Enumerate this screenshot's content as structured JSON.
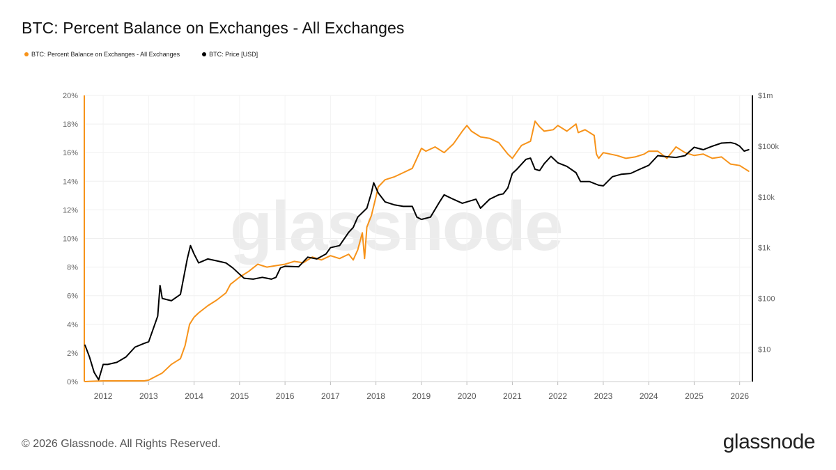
{
  "title": "BTC: Percent Balance on Exchanges - All Exchanges",
  "legend": [
    {
      "label": "BTC: Percent Balance on Exchanges - All Exchanges",
      "color": "#f7931a"
    },
    {
      "label": "BTC: Price [USD]",
      "color": "#000000"
    }
  ],
  "watermark": "glassnode",
  "footer": {
    "copyright": "© 2026 Glassnode. All Rights Reserved.",
    "logo": "glassnode"
  },
  "chart_data": {
    "type": "line",
    "title": "BTC: Percent Balance on Exchanges - All Exchanges",
    "grid": true,
    "x_ticks": [
      "2012",
      "2013",
      "2014",
      "2015",
      "2016",
      "2017",
      "2018",
      "2019",
      "2020",
      "2021",
      "2022",
      "2023",
      "2024",
      "2025",
      "2026"
    ],
    "xlim": [
      2011.6,
      2026.25
    ],
    "y_left": {
      "ticks": [
        "0%",
        "2%",
        "4%",
        "6%",
        "8%",
        "10%",
        "12%",
        "14%",
        "16%",
        "18%",
        "20%"
      ],
      "ylim": [
        0,
        20
      ],
      "unit": "%"
    },
    "y_right": {
      "ticks": [
        "$10",
        "$100",
        "$1k",
        "$10k",
        "$100k",
        "$1m"
      ],
      "scale": "log",
      "ylim": [
        2.3,
        1000000
      ]
    },
    "series": [
      {
        "name": "BTC: Percent Balance on Exchanges - All Exchanges",
        "color": "#f7931a",
        "axis": "left",
        "x": [
          2011.6,
          2012.0,
          2012.5,
          2012.9,
          2013.0,
          2013.3,
          2013.5,
          2013.7,
          2013.8,
          2013.9,
          2014.0,
          2014.1,
          2014.3,
          2014.5,
          2014.7,
          2014.8,
          2015.0,
          2015.2,
          2015.4,
          2015.6,
          2015.8,
          2016.0,
          2016.2,
          2016.4,
          2016.6,
          2016.8,
          2017.0,
          2017.2,
          2017.4,
          2017.5,
          2017.6,
          2017.7,
          2017.75,
          2017.8,
          2017.9,
          2018.0,
          2018.05,
          2018.2,
          2018.4,
          2018.6,
          2018.8,
          2018.9,
          2019.0,
          2019.1,
          2019.3,
          2019.5,
          2019.7,
          2019.9,
          2020.0,
          2020.1,
          2020.3,
          2020.5,
          2020.7,
          2020.9,
          2021.0,
          2021.2,
          2021.4,
          2021.5,
          2021.6,
          2021.7,
          2021.9,
          2022.0,
          2022.2,
          2022.4,
          2022.45,
          2022.6,
          2022.8,
          2022.85,
          2022.9,
          2023.0,
          2023.3,
          2023.5,
          2023.7,
          2023.9,
          2024.0,
          2024.2,
          2024.4,
          2024.6,
          2024.8,
          2025.0,
          2025.2,
          2025.4,
          2025.6,
          2025.8,
          2026.0,
          2026.1,
          2026.2
        ],
        "y": [
          0.0,
          0.05,
          0.05,
          0.05,
          0.1,
          0.6,
          1.2,
          1.6,
          2.5,
          4.0,
          4.5,
          4.8,
          5.3,
          5.7,
          6.2,
          6.8,
          7.3,
          7.7,
          8.2,
          8.0,
          8.1,
          8.2,
          8.4,
          8.3,
          8.7,
          8.5,
          8.8,
          8.6,
          8.9,
          8.5,
          9.2,
          10.4,
          8.6,
          10.8,
          11.6,
          12.9,
          13.6,
          14.1,
          14.3,
          14.6,
          14.9,
          15.6,
          16.3,
          16.1,
          16.4,
          16.0,
          16.6,
          17.5,
          17.9,
          17.5,
          17.1,
          17.0,
          16.7,
          15.9,
          15.6,
          16.5,
          16.8,
          18.2,
          17.8,
          17.5,
          17.6,
          17.9,
          17.5,
          18.0,
          17.4,
          17.6,
          17.2,
          15.9,
          15.6,
          16.0,
          15.8,
          15.6,
          15.7,
          15.9,
          16.1,
          16.1,
          15.6,
          16.4,
          16.0,
          15.8,
          15.9,
          15.6,
          15.7,
          15.2,
          15.1,
          14.9,
          14.7
        ]
      },
      {
        "name": "BTC: Price [USD]",
        "color": "#000000",
        "axis": "right",
        "x": [
          2011.6,
          2011.7,
          2011.8,
          2011.9,
          2012.0,
          2012.1,
          2012.3,
          2012.5,
          2012.7,
          2012.9,
          2013.0,
          2013.2,
          2013.25,
          2013.3,
          2013.5,
          2013.7,
          2013.85,
          2013.92,
          2014.0,
          2014.1,
          2014.3,
          2014.5,
          2014.7,
          2014.85,
          2015.0,
          2015.1,
          2015.3,
          2015.5,
          2015.7,
          2015.8,
          2015.9,
          2016.0,
          2016.3,
          2016.5,
          2016.7,
          2016.9,
          2017.0,
          2017.2,
          2017.4,
          2017.5,
          2017.6,
          2017.8,
          2017.9,
          2017.95,
          2018.05,
          2018.2,
          2018.4,
          2018.6,
          2018.8,
          2018.9,
          2019.0,
          2019.2,
          2019.4,
          2019.5,
          2019.7,
          2019.9,
          2020.0,
          2020.2,
          2020.3,
          2020.5,
          2020.7,
          2020.8,
          2020.9,
          2021.0,
          2021.1,
          2021.3,
          2021.4,
          2021.5,
          2021.6,
          2021.7,
          2021.85,
          2022.0,
          2022.2,
          2022.4,
          2022.5,
          2022.7,
          2022.9,
          2023.0,
          2023.2,
          2023.4,
          2023.6,
          2023.8,
          2024.0,
          2024.2,
          2024.4,
          2024.6,
          2024.8,
          2025.0,
          2025.2,
          2025.4,
          2025.6,
          2025.8,
          2025.9,
          2026.0,
          2026.1,
          2026.2
        ],
        "y": [
          12,
          7,
          3.5,
          2.5,
          5,
          5,
          5.5,
          7,
          11,
          13,
          14,
          45,
          180,
          100,
          90,
          120,
          600,
          1100,
          750,
          500,
          600,
          550,
          500,
          400,
          300,
          250,
          240,
          260,
          240,
          260,
          400,
          430,
          420,
          650,
          600,
          750,
          1000,
          1100,
          2000,
          2500,
          4000,
          6000,
          12000,
          19000,
          12000,
          8000,
          7000,
          6500,
          6500,
          4000,
          3600,
          4000,
          8000,
          11000,
          9000,
          7500,
          8000,
          9000,
          6000,
          9000,
          11000,
          11500,
          15000,
          29000,
          35000,
          55000,
          58000,
          35000,
          33000,
          45000,
          63000,
          47000,
          40000,
          30000,
          20000,
          20000,
          17000,
          16500,
          25000,
          28000,
          29000,
          35000,
          42000,
          65000,
          62000,
          60000,
          65000,
          95000,
          85000,
          100000,
          115000,
          118000,
          112000,
          100000,
          80000,
          85000
        ]
      }
    ]
  }
}
